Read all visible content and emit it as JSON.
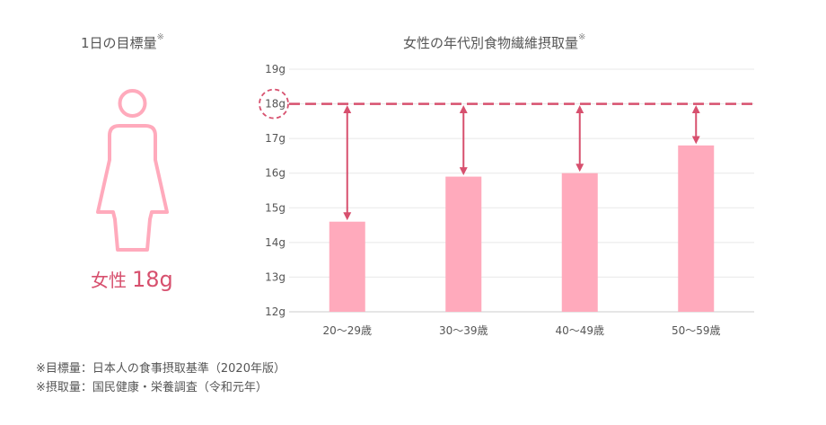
{
  "left": {
    "title": "1日の目標量",
    "mark": "※",
    "figure_icon": "woman-icon",
    "goal_label": "女性",
    "goal_value": "18g"
  },
  "chart_data": {
    "type": "bar",
    "title": "女性の年代別食物繊維摂取量",
    "title_mark": "※",
    "categories": [
      "20〜29歳",
      "30〜39歳",
      "40〜49歳",
      "50〜59歳"
    ],
    "values": [
      14.6,
      15.9,
      16.0,
      16.8
    ],
    "ylim": [
      12,
      19
    ],
    "yticks": [
      "12g",
      "13g",
      "14g",
      "15g",
      "16g",
      "17g",
      "18g",
      "19g"
    ],
    "target": 18,
    "grid": true,
    "colors": {
      "bar": "#ffaabc",
      "accent": "#d7506e",
      "grid": "#e8e8e8"
    }
  },
  "notes": [
    "※目標量：日本人の食事摂取基準（2020年版）",
    "※摂取量：国民健康・栄養調査（令和元年）"
  ]
}
